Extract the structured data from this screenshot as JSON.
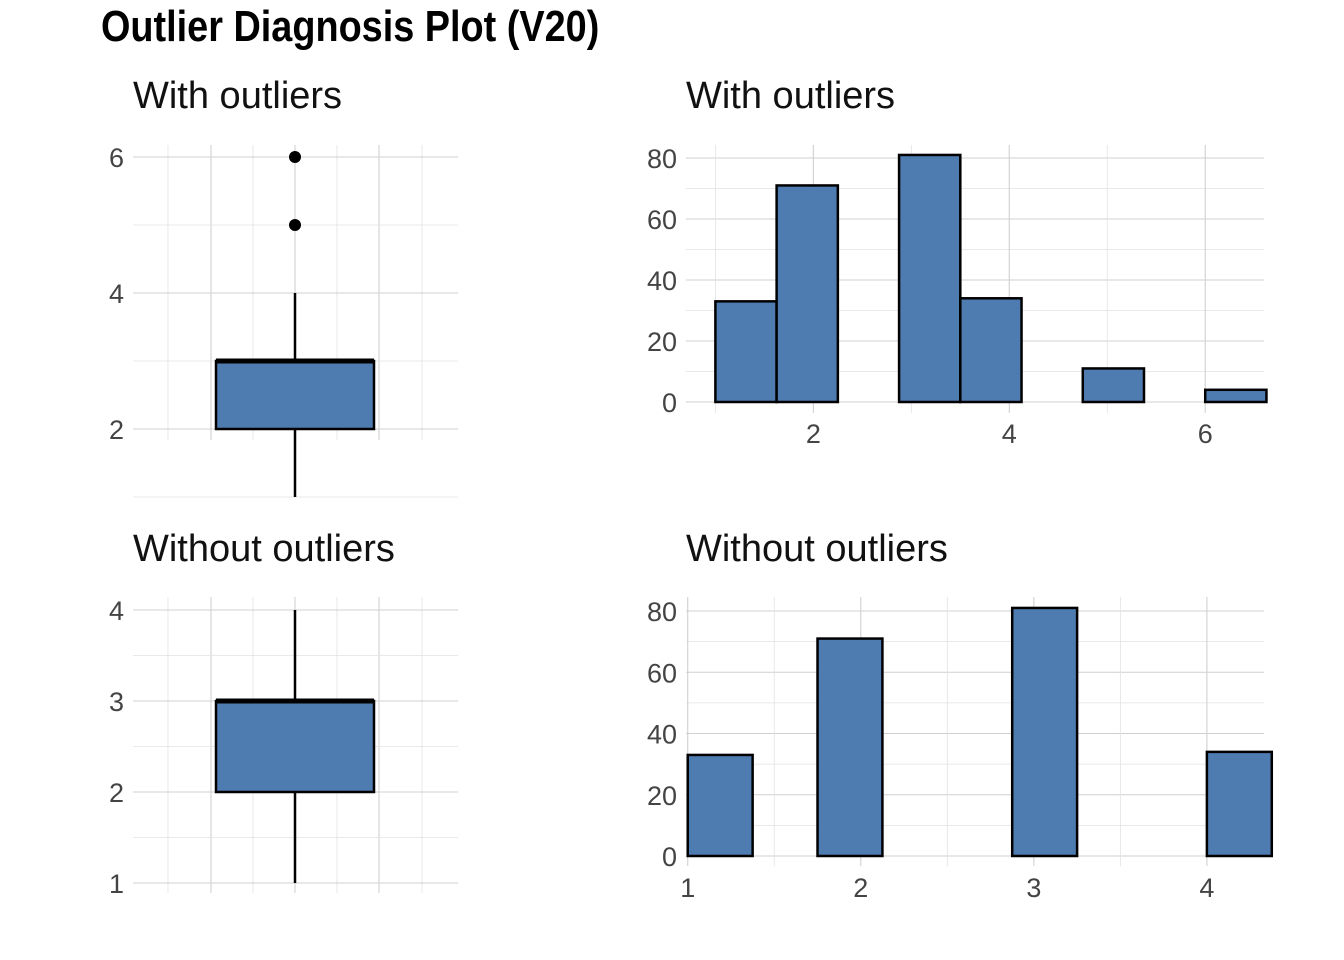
{
  "title": "Outlier Diagnosis Plot (V20)",
  "colors": {
    "fill": "#4f7cb0",
    "outline": "#000000",
    "grid": "#d0d0d0",
    "tick_text": "#444444"
  },
  "chart_data": [
    {
      "type": "box",
      "title": "With outliers",
      "ylim": [
        1,
        6
      ],
      "yticks": [
        2,
        4,
        6
      ],
      "stats": {
        "min": 1,
        "q1": 2,
        "median": 3,
        "q3": 3,
        "max": 4
      },
      "outliers": [
        5,
        6
      ],
      "grid": true
    },
    {
      "type": "bar",
      "subtype": "histogram",
      "title": "With outliers",
      "xlim": [
        0.7,
        6.6
      ],
      "ylim": [
        0,
        81
      ],
      "xticks": [
        2,
        4,
        6
      ],
      "yticks": [
        0,
        20,
        40,
        60,
        80
      ],
      "bin_width": 0.625,
      "bins": [
        {
          "x0": 1.0,
          "x1": 1.625,
          "count": 33
        },
        {
          "x0": 1.625,
          "x1": 2.25,
          "count": 71
        },
        {
          "x0": 2.25,
          "x1": 2.875,
          "count": 0
        },
        {
          "x0": 2.875,
          "x1": 3.5,
          "count": 81
        },
        {
          "x0": 3.5,
          "x1": 4.125,
          "count": 34
        },
        {
          "x0": 4.125,
          "x1": 4.75,
          "count": 0
        },
        {
          "x0": 4.75,
          "x1": 5.375,
          "count": 11
        },
        {
          "x0": 5.375,
          "x1": 6.0,
          "count": 0
        },
        {
          "x0": 6.0,
          "x1": 6.625,
          "count": 4
        }
      ],
      "grid": true
    },
    {
      "type": "box",
      "title": "Without outliers",
      "ylim": [
        1,
        4
      ],
      "yticks": [
        1,
        2,
        3,
        4
      ],
      "stats": {
        "min": 1,
        "q1": 2,
        "median": 3,
        "q3": 3,
        "max": 4
      },
      "outliers": [],
      "grid": true
    },
    {
      "type": "bar",
      "subtype": "histogram",
      "title": "Without outliers",
      "xlim": [
        0.99,
        4.33
      ],
      "ylim": [
        0,
        81
      ],
      "xticks": [
        1,
        2,
        3,
        4
      ],
      "yticks": [
        0,
        20,
        40,
        60,
        80
      ],
      "bin_width": 0.375,
      "bins": [
        {
          "x0": 1.0,
          "x1": 1.375,
          "count": 33
        },
        {
          "x0": 1.375,
          "x1": 1.75,
          "count": 0
        },
        {
          "x0": 1.75,
          "x1": 2.125,
          "count": 71
        },
        {
          "x0": 2.125,
          "x1": 2.5,
          "count": 0
        },
        {
          "x0": 2.5,
          "x1": 2.875,
          "count": 0
        },
        {
          "x0": 2.875,
          "x1": 3.25,
          "count": 81
        },
        {
          "x0": 3.25,
          "x1": 3.625,
          "count": 0
        },
        {
          "x0": 3.625,
          "x1": 4.0,
          "count": 0
        },
        {
          "x0": 4.0,
          "x1": 4.375,
          "count": 34
        }
      ],
      "grid": true
    }
  ]
}
